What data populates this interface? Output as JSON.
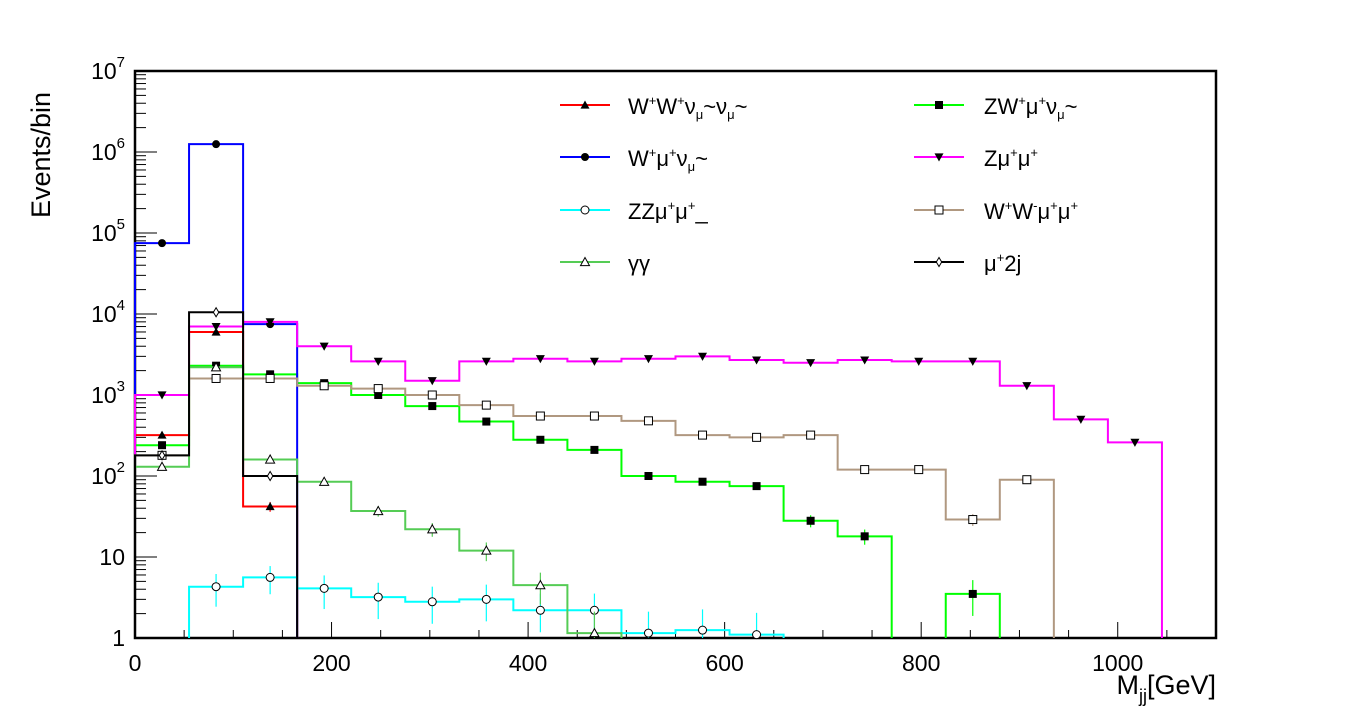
{
  "chart_data": {
    "type": "line",
    "subtype": "step-histogram",
    "title": "",
    "xlabel": "M",
    "xlabel_sub": "jj",
    "xlabel_unit": "[GeV]",
    "ylabel": "Events/bin",
    "yscale": "log",
    "xlim": [
      0,
      1100
    ],
    "ylim": [
      1,
      10000000
    ],
    "x_ticks": [
      "0",
      "200",
      "400",
      "600",
      "800",
      "1000"
    ],
    "y_ticks": [
      {
        "base": "1",
        "exp": ""
      },
      {
        "base": "10",
        "exp": ""
      },
      {
        "base": "10",
        "exp": "2"
      },
      {
        "base": "10",
        "exp": "3"
      },
      {
        "base": "10",
        "exp": "4"
      },
      {
        "base": "10",
        "exp": "5"
      },
      {
        "base": "10",
        "exp": "6"
      },
      {
        "base": "10",
        "exp": "7"
      }
    ],
    "bin_edges": [
      0,
      55,
      110,
      165,
      220,
      275,
      330,
      385,
      440,
      495,
      550,
      605,
      660,
      715,
      770,
      825,
      880,
      935,
      990,
      1045
    ],
    "legend_position": "top-right",
    "series": [
      {
        "name": "W+W+νμ~νμ~",
        "color": "#ff0000",
        "marker": "triangle-up",
        "values": [
          320,
          6000,
          42,
          null,
          null,
          null,
          null,
          null,
          null,
          null,
          null,
          null,
          null,
          null,
          null,
          null,
          null,
          null,
          null
        ]
      },
      {
        "name": "ZW+μ+νμ~",
        "color": "#00ff00",
        "marker": "square",
        "values": [
          240,
          2300,
          1800,
          1400,
          1000,
          730,
          470,
          280,
          210,
          100,
          85,
          75,
          28,
          18,
          null,
          3.5,
          null,
          null,
          null
        ]
      },
      {
        "name": "W+μ+νμ~",
        "color": "#0000ff",
        "marker": "circle",
        "values": [
          75000,
          1250000,
          7500,
          null,
          null,
          null,
          null,
          null,
          null,
          null,
          null,
          null,
          null,
          null,
          null,
          null,
          null,
          null,
          null
        ]
      },
      {
        "name": "Zμ+μ+",
        "color": "#ff00ff",
        "marker": "triangle-down",
        "values": [
          1000,
          7000,
          8000,
          4000,
          2600,
          1500,
          2600,
          2800,
          2600,
          2800,
          3000,
          2700,
          2500,
          2700,
          2600,
          2600,
          1300,
          500,
          260
        ]
      },
      {
        "name": "ZZμ+μ+_",
        "color": "#00ffff",
        "marker": "open-circle",
        "values": [
          null,
          4.3,
          5.6,
          4.1,
          3.2,
          2.8,
          3.0,
          2.2,
          2.2,
          1.15,
          1.25,
          1.1,
          null,
          null,
          null,
          null,
          null,
          null,
          null
        ]
      },
      {
        "name": "W+W-μ+μ+",
        "color": "#b09880",
        "marker": "open-square",
        "values": [
          180,
          1600,
          1600,
          1300,
          1200,
          1000,
          750,
          550,
          550,
          480,
          320,
          300,
          320,
          120,
          120,
          29,
          90,
          null,
          null
        ]
      },
      {
        "name": "γγ",
        "color": "#55cc55",
        "marker": "open-triangle",
        "values": [
          130,
          2200,
          160,
          85,
          37,
          22,
          12,
          4.5,
          1.15,
          null,
          null,
          null,
          null,
          null,
          null,
          null,
          null,
          null,
          null
        ]
      },
      {
        "name": "μ+2j",
        "color": "#000000",
        "marker": "diamond",
        "values": [
          180,
          10500,
          100,
          null,
          null,
          null,
          null,
          null,
          null,
          null,
          null,
          null,
          null,
          null,
          null,
          null,
          null,
          null,
          null
        ]
      }
    ]
  },
  "legend": [
    {
      "main": "W",
      "parts": [
        [
          "sup",
          "+"
        ],
        [
          "t",
          "W"
        ],
        [
          "sup",
          "+"
        ],
        [
          "t",
          "ν"
        ],
        [
          "sub",
          "μ"
        ],
        [
          "t",
          "~ν"
        ],
        [
          "sub",
          "μ"
        ],
        [
          "t",
          "~"
        ]
      ]
    },
    {
      "main": "ZW",
      "parts": [
        [
          "sup",
          "+"
        ],
        [
          "t",
          "μ"
        ],
        [
          "sup",
          "+"
        ],
        [
          "t",
          "ν"
        ],
        [
          "sub",
          "μ"
        ],
        [
          "t",
          "~"
        ]
      ]
    },
    {
      "main": "W",
      "parts": [
        [
          "sup",
          "+"
        ],
        [
          "t",
          "μ"
        ],
        [
          "sup",
          "+"
        ],
        [
          "t",
          "ν"
        ],
        [
          "sub",
          "μ"
        ],
        [
          "t",
          "~"
        ]
      ]
    },
    {
      "main": "Zμ",
      "parts": [
        [
          "sup",
          "+"
        ],
        [
          "t",
          "μ"
        ],
        [
          "sup",
          "+"
        ]
      ]
    },
    {
      "main": "ZZμ",
      "parts": [
        [
          "sup",
          "+"
        ],
        [
          "t",
          "μ"
        ],
        [
          "sup",
          "+"
        ],
        [
          "t",
          "_"
        ]
      ]
    },
    {
      "main": "W",
      "parts": [
        [
          "sup",
          "+"
        ],
        [
          "t",
          "W"
        ],
        [
          "sup",
          "-"
        ],
        [
          "t",
          "μ"
        ],
        [
          "sup",
          "+"
        ],
        [
          "t",
          "μ"
        ],
        [
          "sup",
          "+"
        ]
      ]
    },
    {
      "main": "γγ",
      "parts": []
    },
    {
      "main": "μ",
      "parts": [
        [
          "sup",
          "+"
        ],
        [
          "t",
          "2j"
        ]
      ]
    }
  ]
}
